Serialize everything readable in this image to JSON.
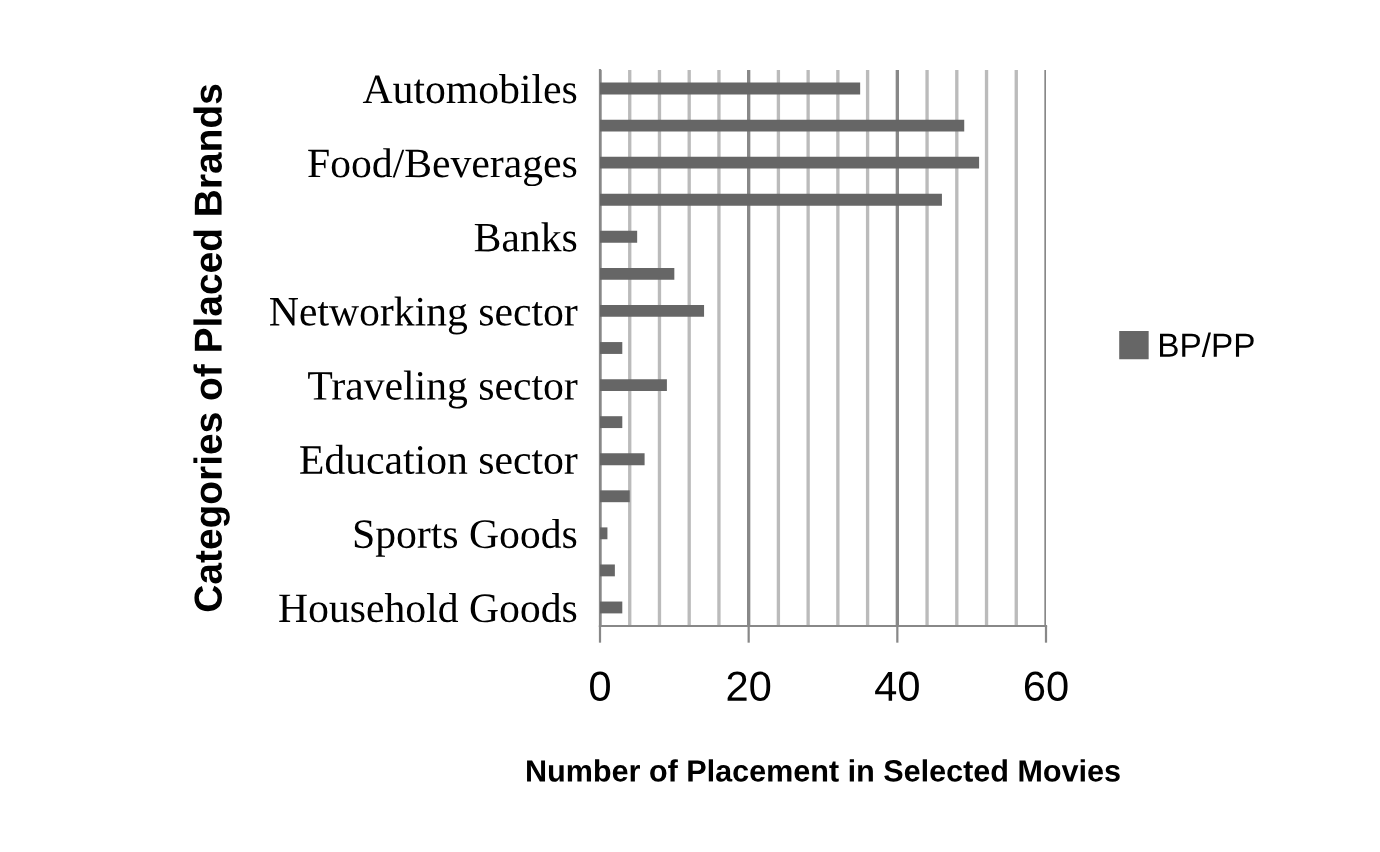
{
  "chart_data": {
    "type": "bar",
    "orientation": "horizontal",
    "xlabel": "Number of Placement in Selected Movies",
    "ylabel": "Categories of Placed Brands",
    "categories": [
      "Automobiles",
      null,
      "Food/Beverages",
      null,
      "Banks",
      null,
      "Networking sector",
      null,
      "Traveling sector",
      null,
      "Education sector",
      null,
      "Sports Goods",
      null,
      "Household Goods"
    ],
    "series": [
      {
        "name": "BP/PP",
        "color": "#666666",
        "values": [
          35,
          49,
          51,
          46,
          5,
          10,
          14,
          3,
          9,
          3,
          6,
          4,
          1,
          2,
          3
        ]
      }
    ],
    "xlim": [
      0,
      60
    ],
    "xticks": [
      0,
      {
        "value": 4,
        "label": null
      },
      {
        "value": 8,
        "label": null
      },
      {
        "value": 12,
        "label": null
      },
      {
        "value": 16,
        "label": null
      },
      20,
      {
        "value": 24,
        "label": null
      },
      {
        "value": 28,
        "label": null
      },
      {
        "value": 32,
        "label": null
      },
      {
        "value": 36,
        "label": null
      },
      40,
      {
        "value": 44,
        "label": null
      },
      {
        "value": 48,
        "label": null
      },
      {
        "value": 52,
        "label": null
      },
      {
        "value": 56,
        "label": null
      },
      60
    ],
    "grid": "x",
    "legend": "right"
  }
}
